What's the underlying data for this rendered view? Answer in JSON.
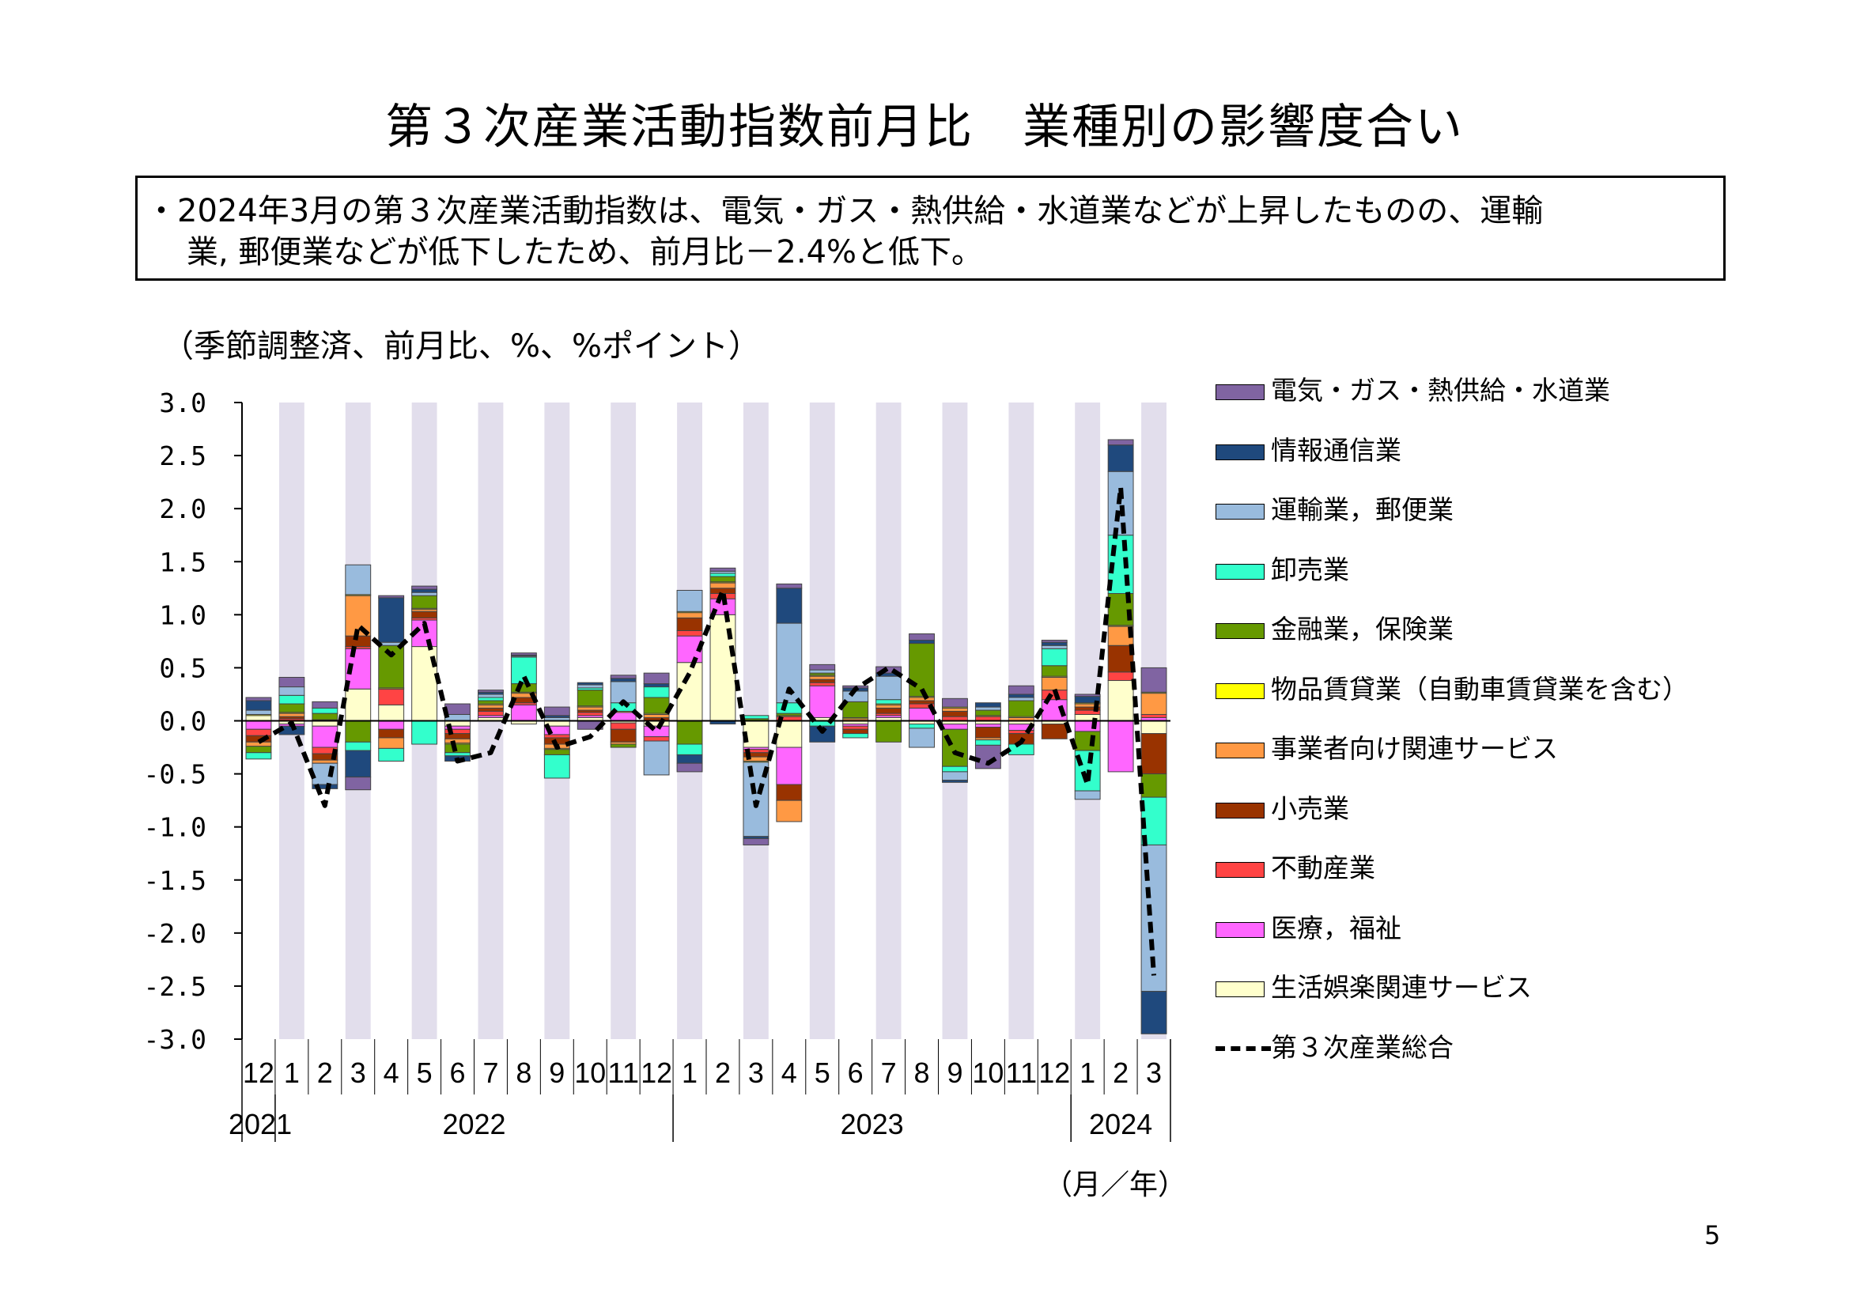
{
  "title": "第３次産業活動指数前月比　業種別の影響度合い",
  "summary": {
    "line1": "・2024年3月の第３次産業活動指数は、電気・ガス・熱供給・水道業などが上昇したものの、運輸",
    "line2": "業, 郵便業などが低下したため、前月比－2.4%と低下。"
  },
  "unit_label": "（季節調整済、前月比、%、%ポイント）",
  "x_unit_label": "（月／年）",
  "page_number": "5",
  "chart_data": {
    "type": "bar",
    "stacked": true,
    "ylim": [
      -3.0,
      3.0
    ],
    "yticks": [
      "3.0",
      "2.5",
      "2.0",
      "1.5",
      "1.0",
      "0.5",
      "0.0",
      "-0.5",
      "-1.0",
      "-1.5",
      "-2.0",
      "-2.5",
      "-3.0"
    ],
    "categories": [
      "12",
      "1",
      "2",
      "3",
      "4",
      "5",
      "6",
      "7",
      "8",
      "9",
      "10",
      "11",
      "12",
      "1",
      "2",
      "3",
      "4",
      "5",
      "6",
      "7",
      "8",
      "9",
      "10",
      "11",
      "12",
      "1",
      "2",
      "3"
    ],
    "year_labels": [
      {
        "label": "2021",
        "index": 0
      },
      {
        "label": "2022",
        "index": 7
      },
      {
        "label": "2023",
        "index": 19
      },
      {
        "label": "2024",
        "index": 26
      }
    ],
    "year_separators_after": [
      0,
      12,
      24
    ],
    "shaded_columns": [
      1,
      3,
      5,
      7,
      9,
      11,
      13,
      15,
      17,
      19,
      21,
      23,
      25,
      27
    ],
    "series": [
      {
        "name": "生活娯楽関連サービス",
        "color": "#FFFFCC",
        "values": [
          0.05,
          -0.03,
          -0.05,
          0.3,
          0.15,
          0.7,
          -0.05,
          0.03,
          -0.03,
          -0.05,
          0.03,
          -0.02,
          -0.05,
          0.55,
          1.0,
          -0.25,
          -0.25,
          0.03,
          -0.03,
          0.03,
          -0.03,
          -0.03,
          -0.03,
          -0.03,
          -0.03,
          0.06,
          0.38,
          -0.12
        ]
      },
      {
        "name": "医療，福祉",
        "color": "#FF66FF",
        "values": [
          -0.08,
          -0.02,
          -0.2,
          0.38,
          -0.08,
          0.25,
          -0.03,
          0.02,
          0.15,
          -0.08,
          0.02,
          0.08,
          -0.1,
          0.25,
          0.15,
          -0.02,
          -0.35,
          0.3,
          -0.02,
          0.02,
          0.12,
          -0.05,
          -0.03,
          -0.06,
          0.2,
          -0.1,
          -0.48,
          0.03
        ]
      },
      {
        "name": "不動産業",
        "color": "#FF4444",
        "values": [
          -0.06,
          0.02,
          -0.06,
          0.02,
          0.15,
          0.02,
          -0.04,
          0.04,
          0.02,
          -0.03,
          0.03,
          -0.06,
          -0.04,
          0.05,
          0.05,
          -0.03,
          0.04,
          0.03,
          -0.03,
          0.02,
          0.04,
          0.04,
          0.04,
          -0.03,
          0.09,
          0.04,
          0.08,
          0.03
        ]
      },
      {
        "name": "小売業",
        "color": "#993300",
        "values": [
          -0.06,
          0.02,
          -0.06,
          0.1,
          -0.08,
          0.06,
          -0.05,
          0.03,
          0.05,
          -0.06,
          0.02,
          -0.12,
          0.03,
          0.12,
          0.05,
          -0.04,
          -0.15,
          0.03,
          -0.04,
          0.05,
          0.03,
          0.05,
          -0.1,
          -0.1,
          -0.14,
          0.03,
          0.25,
          -0.38
        ]
      },
      {
        "name": "事業者向け関連サービス",
        "color": "#FF9944",
        "values": [
          -0.04,
          0.03,
          -0.03,
          0.38,
          -0.1,
          0.02,
          -0.04,
          0.03,
          0.04,
          -0.04,
          0.03,
          -0.02,
          0.03,
          0.05,
          0.05,
          -0.04,
          -0.2,
          0.03,
          0.02,
          0.03,
          0.03,
          0.03,
          -0.02,
          0.03,
          0.12,
          0.03,
          0.18,
          0.2
        ]
      },
      {
        "name": "物品賃貸業（自動車賃貸業を含む）",
        "color": "#FFFF00",
        "values": [
          0.01,
          0.01,
          0.01,
          0.01,
          0.01,
          0.01,
          -0.01,
          0.01,
          0.01,
          -0.01,
          0.01,
          0.01,
          0.01,
          0.01,
          0.01,
          -0.01,
          0.01,
          0.01,
          0.01,
          0.01,
          0.01,
          0.01,
          0.01,
          0.01,
          0.01,
          0.01,
          0.01,
          0.01
        ]
      },
      {
        "name": "金融業，保険業",
        "color": "#669900",
        "values": [
          -0.06,
          0.08,
          0.06,
          -0.2,
          0.4,
          0.12,
          -0.08,
          0.03,
          0.08,
          -0.05,
          0.15,
          -0.03,
          0.15,
          -0.22,
          0.05,
          0.02,
          0.02,
          0.02,
          0.15,
          -0.2,
          0.5,
          -0.35,
          0.05,
          0.15,
          0.1,
          -0.18,
          0.3,
          -0.22
        ]
      },
      {
        "name": "卸売業",
        "color": "#33FFCC",
        "values": [
          -0.06,
          0.08,
          0.05,
          -0.08,
          -0.12,
          -0.22,
          -0.03,
          0.03,
          0.25,
          -0.22,
          0.02,
          0.08,
          0.1,
          -0.1,
          0.03,
          0.03,
          0.1,
          -0.05,
          -0.04,
          0.04,
          -0.04,
          -0.05,
          -0.05,
          -0.1,
          0.16,
          -0.38,
          0.55,
          -0.45
        ]
      },
      {
        "name": "運輸業，郵便業",
        "color": "#99BBDD",
        "values": [
          0.04,
          0.08,
          -0.2,
          0.28,
          0.03,
          0.03,
          0.06,
          0.03,
          0.01,
          0.03,
          0.03,
          0.2,
          -0.32,
          0.2,
          0.02,
          -0.7,
          0.75,
          0.03,
          0.1,
          0.22,
          -0.18,
          -0.08,
          0.03,
          0.03,
          0.03,
          -0.08,
          0.6,
          -1.38
        ]
      },
      {
        "name": "情報通信業",
        "color": "#1F497D",
        "values": [
          0.09,
          -0.08,
          -0.04,
          -0.25,
          0.42,
          0.03,
          -0.05,
          0.02,
          0.01,
          0.02,
          0.02,
          0.03,
          0.03,
          -0.08,
          -0.03,
          -0.02,
          0.33,
          -0.15,
          0.03,
          0.03,
          0.03,
          -0.02,
          0.04,
          0.03,
          0.03,
          0.06,
          0.25,
          -0.4
        ]
      },
      {
        "name": "電気・ガス・熱供給・水道業",
        "color": "#8064A2",
        "values": [
          0.03,
          0.09,
          0.06,
          -0.12,
          0.02,
          0.03,
          0.1,
          0.02,
          0.02,
          0.08,
          -0.08,
          0.03,
          0.1,
          -0.08,
          0.03,
          -0.06,
          0.04,
          0.05,
          0.02,
          0.06,
          0.06,
          0.08,
          -0.22,
          0.08,
          0.02,
          0.02,
          0.05,
          0.23
        ]
      }
    ],
    "total": {
      "name": "第３次産業総合",
      "color": "#000000",
      "values": [
        -0.2,
        -0.02,
        -0.8,
        0.9,
        0.62,
        0.92,
        -0.38,
        -0.3,
        0.42,
        -0.25,
        -0.15,
        0.18,
        -0.1,
        0.45,
        1.23,
        -0.8,
        0.3,
        -0.1,
        0.3,
        0.5,
        0.3,
        -0.3,
        -0.4,
        -0.2,
        0.3,
        -0.6,
        2.2,
        -2.4
      ]
    }
  }
}
